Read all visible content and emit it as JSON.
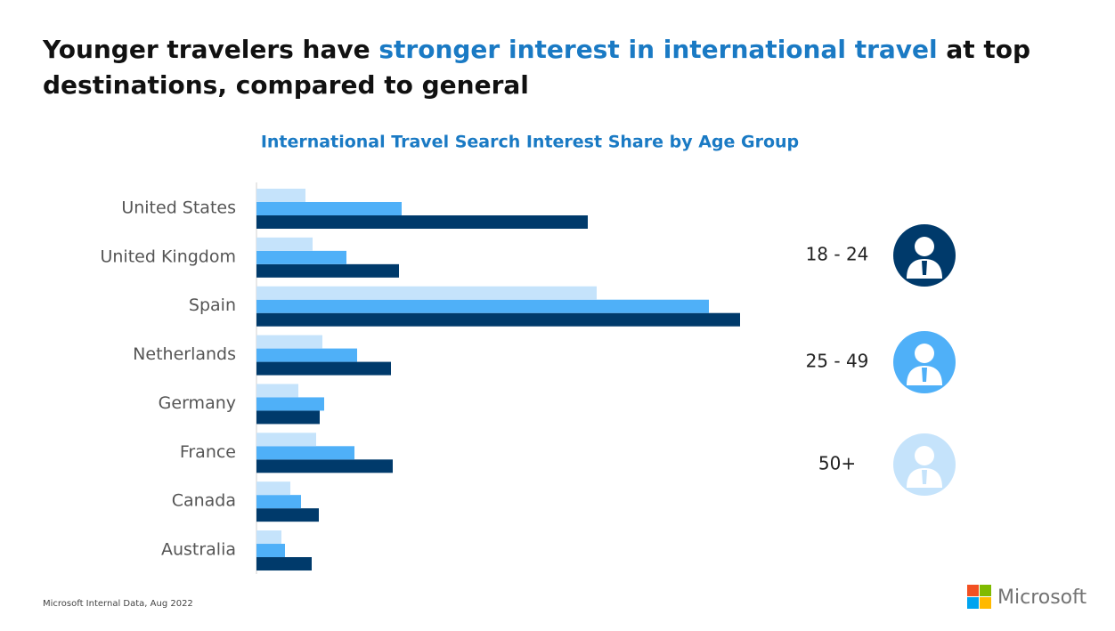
{
  "header": {
    "title_parts": [
      "Younger travelers have ",
      "stronger interest in international travel",
      " at top destinations, compared to general"
    ]
  },
  "chart_data": {
    "type": "bar",
    "orientation": "horizontal",
    "title": "International Travel Search Interest Share by Age Group",
    "categories": [
      "United States",
      "United Kingdom",
      "Spain",
      "Netherlands",
      "Germany",
      "France",
      "Canada",
      "Australia"
    ],
    "series": [
      {
        "name": "18 - 24",
        "color": "#003a6b",
        "values": [
          372,
          160,
          543,
          151,
          71,
          153,
          70,
          62
        ]
      },
      {
        "name": "25 - 49",
        "color": "#4fb0f8",
        "values": [
          163,
          101,
          508,
          113,
          76,
          110,
          50,
          32
        ]
      },
      {
        "name": "50+",
        "color": "#c5e3fb",
        "values": [
          55,
          63,
          382,
          74,
          47,
          67,
          38,
          28
        ]
      }
    ]
  },
  "footer": {
    "source": "Microsoft Internal Data, Aug 2022",
    "logo": "Microsoft"
  }
}
